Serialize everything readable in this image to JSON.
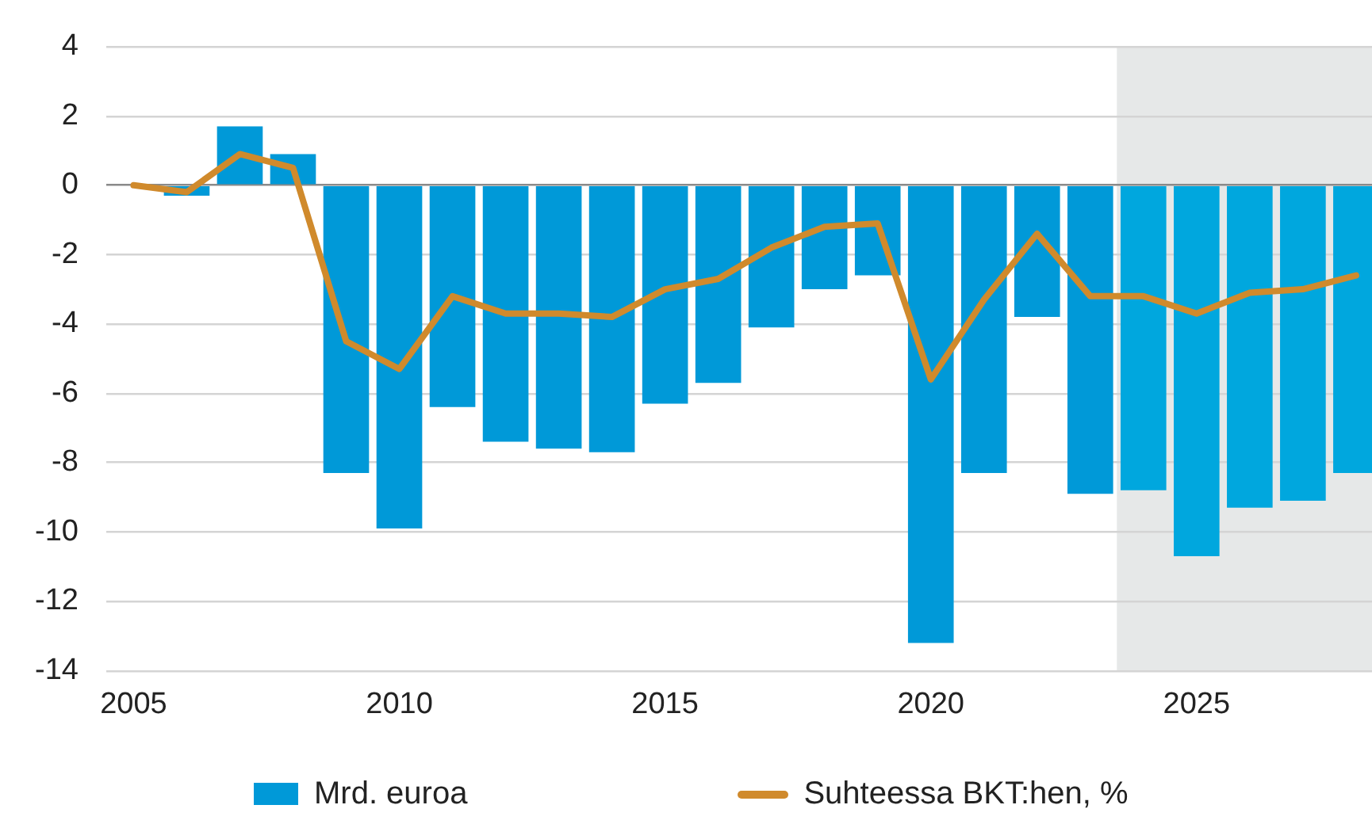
{
  "chart_data": {
    "type": "bar",
    "x": [
      2005,
      2006,
      2007,
      2008,
      2009,
      2010,
      2011,
      2012,
      2013,
      2014,
      2015,
      2016,
      2017,
      2018,
      2019,
      2020,
      2021,
      2022,
      2023,
      2024,
      2025,
      2026,
      2027,
      2028
    ],
    "series": [
      {
        "name": "Mrd. euroa",
        "color": "#0099d8",
        "colors": [
          "#0099d8",
          "#0099d8",
          "#0099d8",
          "#0099d8",
          "#0099d8",
          "#0099d8",
          "#0099d8",
          "#0099d8",
          "#0099d8",
          "#0099d8",
          "#0099d8",
          "#0099d8",
          "#0099d8",
          "#0099d8",
          "#0099d8",
          "#0099d8",
          "#0099d8",
          "#0099d8",
          "#0099d8",
          "#00a7de",
          "#00a7de",
          "#00a7de",
          "#00a7de",
          "#00a7de"
        ],
        "values": [
          null,
          -0.3,
          1.7,
          0.9,
          -8.3,
          -9.9,
          -6.4,
          -7.4,
          -7.6,
          -7.7,
          -6.3,
          -5.7,
          -4.1,
          -3.0,
          -2.6,
          -13.2,
          -8.3,
          -3.8,
          -8.9,
          -8.8,
          -10.7,
          -9.3,
          -9.1,
          -8.3
        ]
      },
      {
        "name": "Suhteessa BKT:hen, %",
        "type": "line",
        "color": "#d08a2c",
        "values": [
          0.0,
          -0.2,
          0.9,
          0.5,
          -4.5,
          -5.3,
          -3.2,
          -3.7,
          -3.7,
          -3.8,
          -3.0,
          -2.7,
          -1.8,
          -1.2,
          -1.1,
          -5.6,
          -3.3,
          -1.4,
          -3.2,
          -3.2,
          -3.7,
          -3.1,
          -3.0,
          -2.6
        ]
      }
    ],
    "xlim": [
      2004.5,
      2028.3
    ],
    "xticks": [
      2005,
      2010,
      2015,
      2020,
      2025
    ],
    "ylim": [
      -14,
      4
    ],
    "yticks": [
      -14,
      -12,
      -10,
      -8,
      -6,
      -4,
      -2,
      0,
      2,
      4
    ],
    "bands": [
      {
        "axis": "x",
        "from": 2023.5,
        "to": 2028.3,
        "color": "#e6e8e8"
      }
    ],
    "grid": "y",
    "legend": "bottom",
    "marker": "none",
    "line_style": "solid"
  }
}
